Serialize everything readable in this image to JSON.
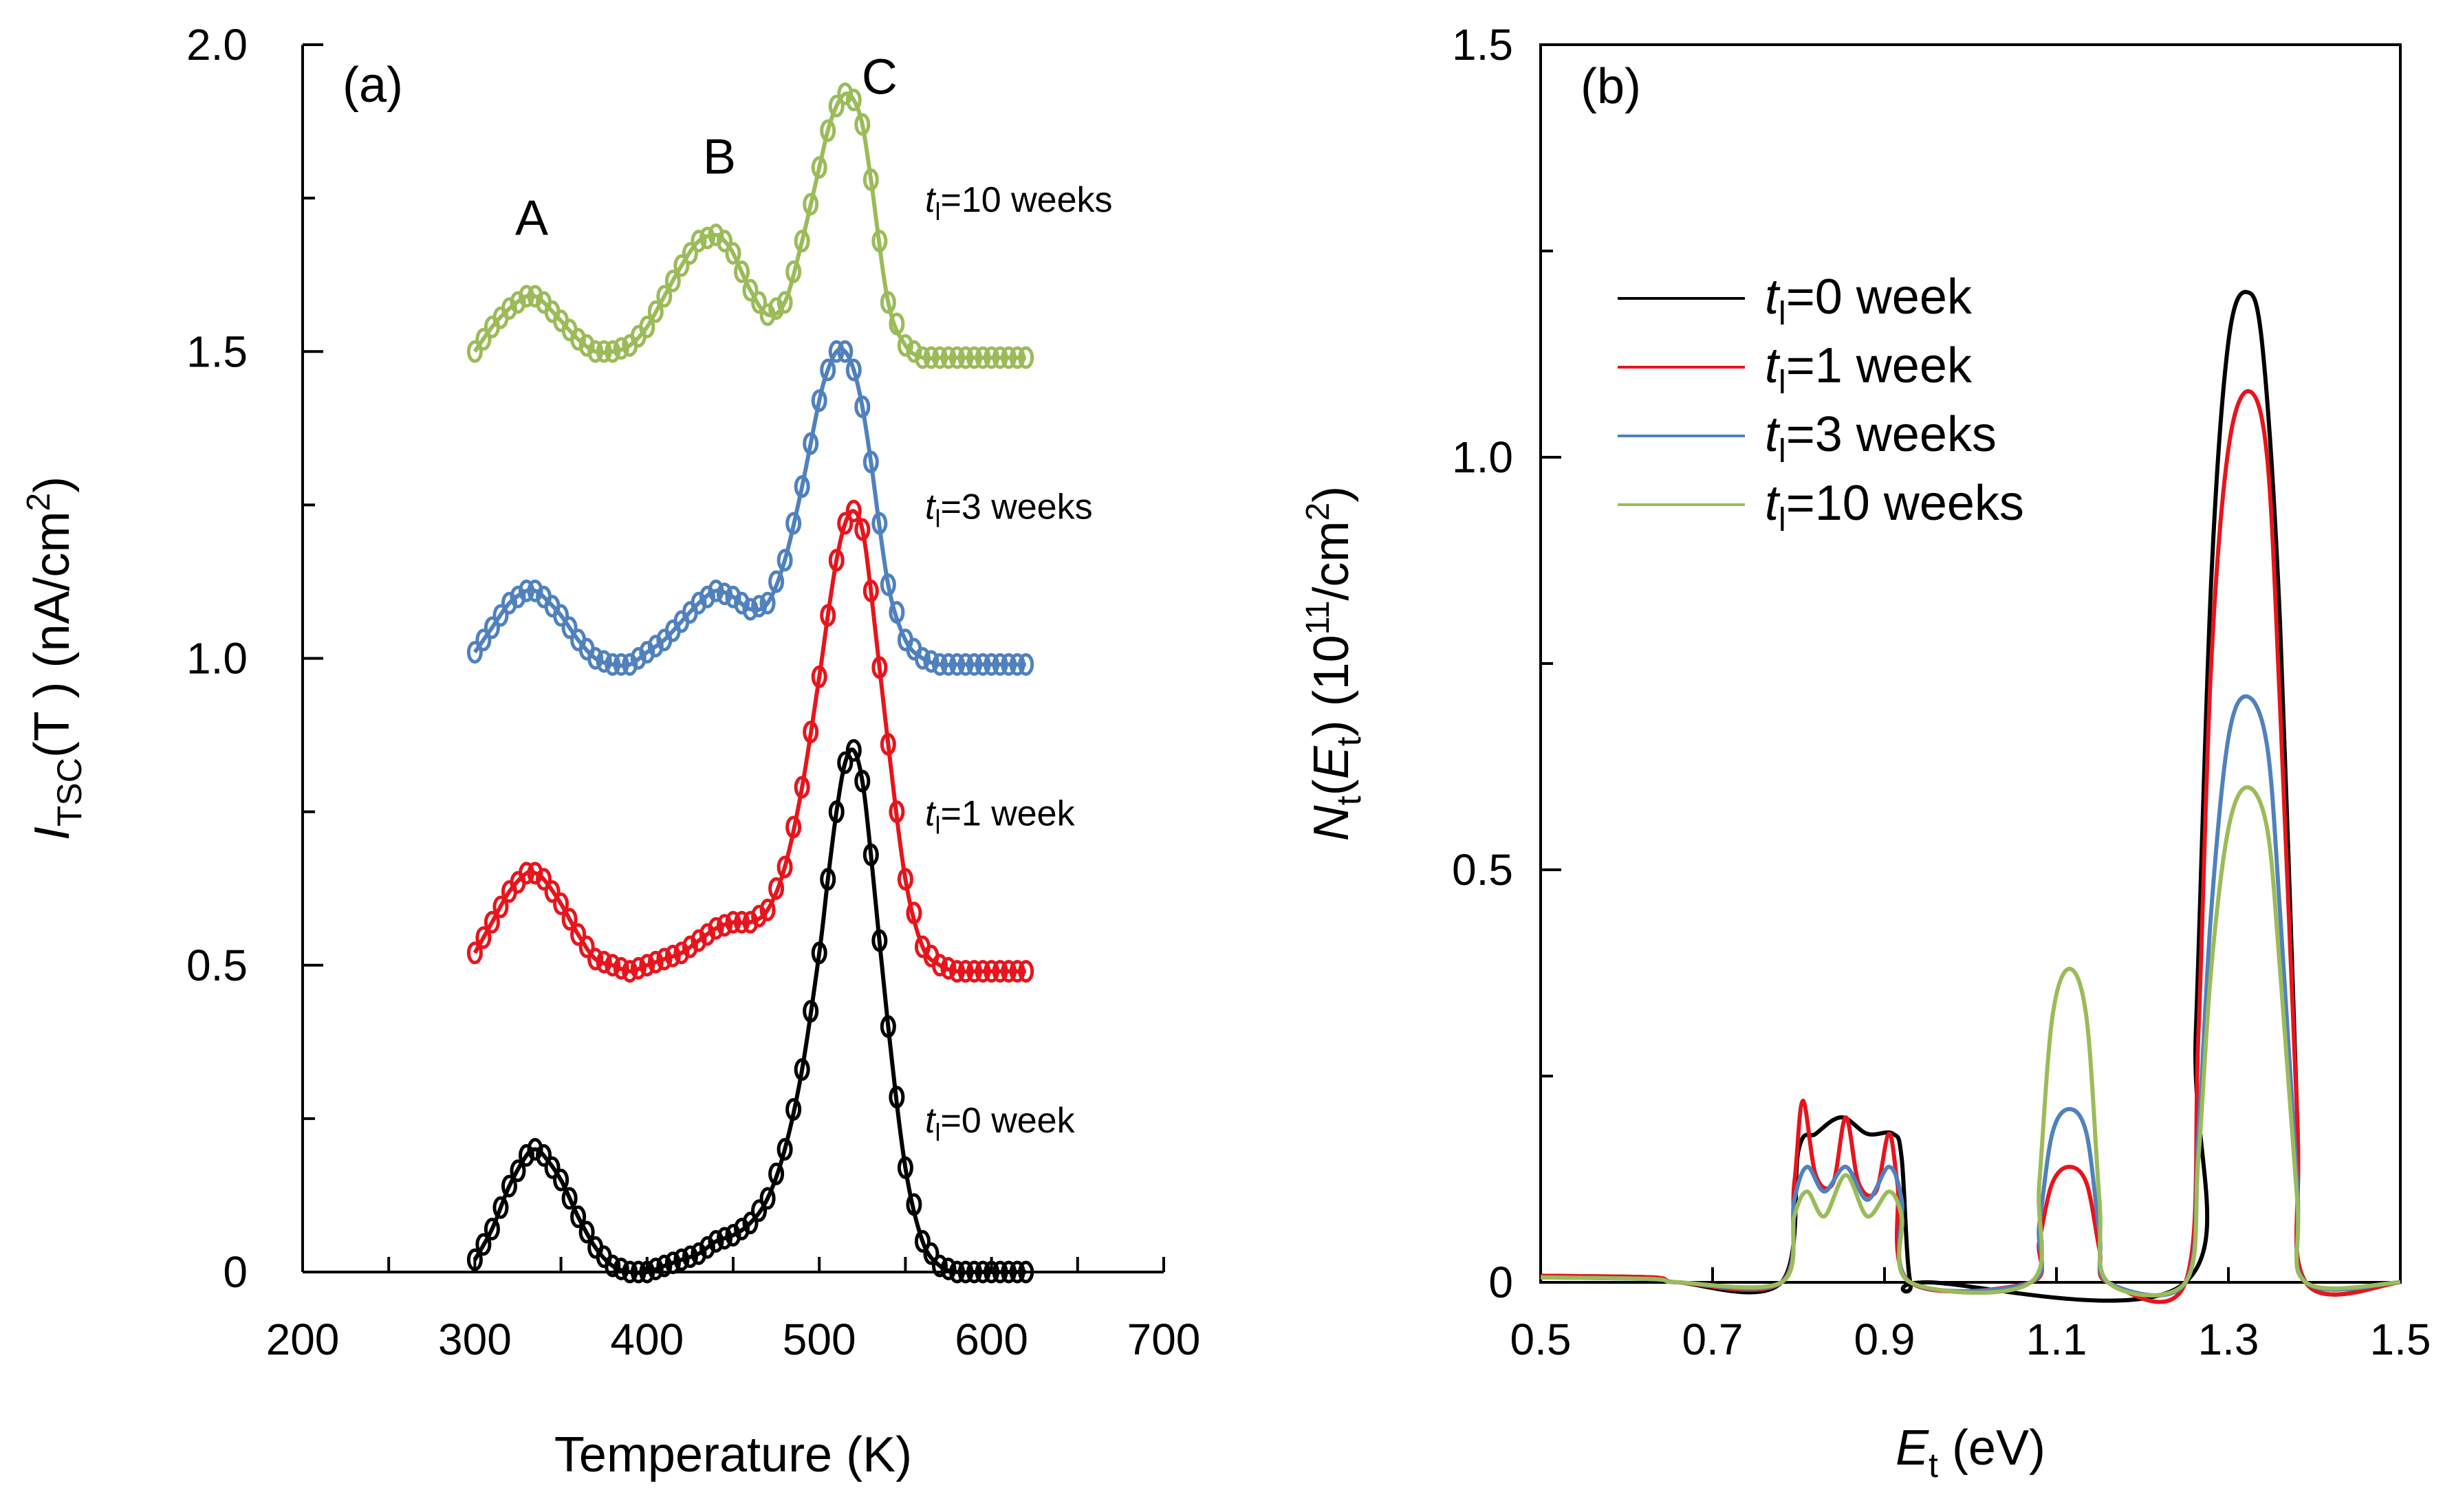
{
  "chart_data": [
    {
      "type": "scatter",
      "panel_label": "(a)",
      "xlabel": "Temperature (K)",
      "ylabel": {
        "main": "I",
        "sub": "TSC",
        "rest": "(T ) (nA/cm",
        "sup": "2",
        "close": ")"
      },
      "xlim": [
        200,
        700
      ],
      "ylim": [
        0,
        2.0
      ],
      "xticks": [
        200,
        300,
        400,
        500,
        600,
        700
      ],
      "xtick_labels": [
        "200",
        "300",
        "400",
        "500",
        "600",
        "700"
      ],
      "yticks": [
        0,
        0.5,
        1.0,
        1.5,
        2.0
      ],
      "ytick_labels": [
        "0",
        "0.5",
        "1.0",
        "1.5",
        "2.0"
      ],
      "peak_labels": [
        {
          "text": "A",
          "x": 333,
          "y": 1.69
        },
        {
          "text": "B",
          "x": 442,
          "y": 1.79
        },
        {
          "text": "C",
          "x": 535,
          "y": 1.92
        }
      ],
      "markers": "open circles (measured), solid line (fit)",
      "series": [
        {
          "name": "tl=0 week",
          "label": {
            "t": "t",
            "sub": "l",
            "rest": "=0 week"
          },
          "color": "#000000",
          "offset": 0.0,
          "x": [
            300,
            310,
            320,
            330,
            335,
            340,
            350,
            360,
            370,
            380,
            390,
            400,
            410,
            420,
            430,
            440,
            450,
            460,
            470,
            480,
            490,
            500,
            505,
            510,
            515,
            520,
            525,
            530,
            540,
            550,
            560,
            570,
            580,
            590,
            600,
            610,
            620
          ],
          "y": [
            0.02,
            0.07,
            0.14,
            0.19,
            0.2,
            0.19,
            0.15,
            0.09,
            0.04,
            0.01,
            0.0,
            0.0,
            0.01,
            0.02,
            0.03,
            0.05,
            0.06,
            0.08,
            0.12,
            0.2,
            0.33,
            0.52,
            0.64,
            0.75,
            0.83,
            0.85,
            0.8,
            0.68,
            0.4,
            0.17,
            0.05,
            0.01,
            0.0,
            0.0,
            0.0,
            0.0,
            0.0
          ]
        },
        {
          "name": "tl=1 week",
          "label": {
            "t": "t",
            "sub": "l",
            "rest": "=1 week"
          },
          "color": "#e8141c",
          "offset": 0.5,
          "x": [
            300,
            310,
            320,
            330,
            335,
            340,
            350,
            360,
            370,
            380,
            390,
            400,
            410,
            420,
            430,
            440,
            450,
            460,
            470,
            480,
            490,
            500,
            505,
            510,
            515,
            520,
            525,
            530,
            540,
            550,
            560,
            570,
            580,
            590,
            600,
            610,
            620
          ],
          "y": [
            0.52,
            0.57,
            0.62,
            0.65,
            0.65,
            0.64,
            0.6,
            0.55,
            0.51,
            0.5,
            0.49,
            0.5,
            0.51,
            0.52,
            0.54,
            0.56,
            0.57,
            0.57,
            0.59,
            0.66,
            0.79,
            0.97,
            1.07,
            1.16,
            1.22,
            1.24,
            1.21,
            1.11,
            0.86,
            0.64,
            0.53,
            0.5,
            0.49,
            0.49,
            0.49,
            0.49,
            0.49
          ]
        },
        {
          "name": "tl=3 weeks",
          "label": {
            "t": "t",
            "sub": "l",
            "rest": "=3 weeks"
          },
          "color": "#4f81bd",
          "offset": 1.0,
          "x": [
            300,
            310,
            320,
            330,
            335,
            340,
            350,
            360,
            370,
            380,
            390,
            400,
            410,
            420,
            430,
            440,
            450,
            460,
            470,
            480,
            490,
            500,
            505,
            510,
            515,
            520,
            525,
            530,
            540,
            550,
            560,
            570,
            580,
            590,
            600,
            610,
            620
          ],
          "y": [
            1.01,
            1.05,
            1.09,
            1.11,
            1.11,
            1.1,
            1.07,
            1.03,
            1.0,
            0.99,
            0.99,
            1.01,
            1.03,
            1.06,
            1.09,
            1.11,
            1.1,
            1.08,
            1.09,
            1.16,
            1.28,
            1.42,
            1.47,
            1.5,
            1.5,
            1.47,
            1.41,
            1.32,
            1.12,
            1.03,
            1.0,
            0.99,
            0.99,
            0.99,
            0.99,
            0.99,
            0.99
          ]
        },
        {
          "name": "tl=10 weeks",
          "label": {
            "t": "t",
            "sub": "l",
            "rest": "=10 weeks"
          },
          "color": "#9bbb59",
          "offset": 1.5,
          "x": [
            300,
            310,
            320,
            330,
            335,
            340,
            350,
            360,
            370,
            380,
            390,
            400,
            410,
            420,
            430,
            440,
            445,
            450,
            460,
            470,
            480,
            490,
            500,
            505,
            510,
            515,
            520,
            525,
            530,
            540,
            550,
            560,
            570,
            580,
            590,
            600,
            610,
            620
          ],
          "y": [
            1.5,
            1.54,
            1.57,
            1.59,
            1.59,
            1.58,
            1.55,
            1.52,
            1.5,
            1.5,
            1.51,
            1.54,
            1.59,
            1.64,
            1.68,
            1.69,
            1.68,
            1.66,
            1.6,
            1.56,
            1.58,
            1.68,
            1.8,
            1.86,
            1.9,
            1.92,
            1.91,
            1.87,
            1.78,
            1.58,
            1.51,
            1.49,
            1.49,
            1.49,
            1.49,
            1.49,
            1.49,
            1.49
          ]
        }
      ]
    },
    {
      "type": "line",
      "panel_label": "(b)",
      "xlabel": {
        "main": "E",
        "sub": "t",
        "rest": " (eV)"
      },
      "ylabel": {
        "main": "N",
        "sub": "t",
        "open": "(",
        "inner": "E",
        "inner_sub": "t",
        "rest": ") (10",
        "sup": "11",
        "rest2": "/cm",
        "sup2": "2",
        "close": ")"
      },
      "xlim": [
        0.5,
        1.5
      ],
      "ylim": [
        0,
        1.5
      ],
      "xticks": [
        0.5,
        0.7,
        0.9,
        1.1,
        1.3,
        1.5
      ],
      "xtick_labels": [
        "0.5",
        "0.7",
        "0.9",
        "1.1",
        "1.3",
        "1.5"
      ],
      "yticks": [
        0,
        0.5,
        1.0,
        1.5
      ],
      "ytick_labels": [
        "0",
        "0.5",
        "1.0",
        "1.5"
      ],
      "legend_position": "upper-left",
      "series": [
        {
          "name": "tl=0 week",
          "label": {
            "t": "t",
            "sub": "l",
            "rest": "=0 week"
          },
          "color": "#000000",
          "x": [
            0.5,
            0.63,
            0.66,
            0.78,
            0.8,
            0.82,
            0.85,
            0.88,
            0.91,
            0.92,
            0.93,
            0.95,
            1.25,
            1.262,
            1.28,
            1.3,
            1.322,
            1.34,
            1.36,
            1.38,
            1.39,
            1.5
          ],
          "y": [
            0.008,
            0.006,
            0.0,
            0.0,
            0.16,
            0.18,
            0.2,
            0.18,
            0.18,
            0.15,
            0.0,
            0.0,
            0.0,
            0.3,
            0.85,
            1.14,
            1.2,
            1.13,
            0.8,
            0.2,
            0.0,
            0.0
          ]
        },
        {
          "name": "tl=1 week",
          "label": {
            "t": "t",
            "sub": "l",
            "rest": "=1 week"
          },
          "color": "#e8141c",
          "x": [
            0.5,
            0.63,
            0.66,
            0.78,
            0.795,
            0.805,
            0.82,
            0.84,
            0.855,
            0.87,
            0.89,
            0.905,
            0.915,
            0.93,
            1.07,
            1.08,
            1.095,
            1.115,
            1.135,
            1.15,
            1.16,
            1.25,
            1.265,
            1.28,
            1.3,
            1.324,
            1.345,
            1.36,
            1.38,
            1.39,
            1.5
          ],
          "y": [
            0.008,
            0.006,
            0.0,
            0.0,
            0.12,
            0.22,
            0.13,
            0.12,
            0.2,
            0.12,
            0.11,
            0.18,
            0.12,
            0.0,
            0.0,
            0.05,
            0.12,
            0.14,
            0.12,
            0.04,
            0.0,
            0.0,
            0.3,
            0.75,
            1.01,
            1.08,
            1.0,
            0.7,
            0.2,
            0.0,
            0.0
          ]
        },
        {
          "name": "tl=3 weeks",
          "label": {
            "t": "t",
            "sub": "l",
            "rest": "=3 weeks"
          },
          "color": "#4f81bd",
          "x": [
            0.5,
            0.63,
            0.66,
            0.78,
            0.795,
            0.81,
            0.83,
            0.855,
            0.88,
            0.905,
            0.92,
            0.93,
            1.07,
            1.08,
            1.095,
            1.115,
            1.135,
            1.15,
            1.16,
            1.25,
            1.265,
            1.28,
            1.3,
            1.322,
            1.345,
            1.36,
            1.38,
            1.39,
            1.5
          ],
          "y": [
            0.006,
            0.004,
            0.0,
            0.0,
            0.1,
            0.14,
            0.11,
            0.14,
            0.1,
            0.14,
            0.1,
            0.0,
            0.0,
            0.07,
            0.18,
            0.21,
            0.18,
            0.06,
            0.0,
            0.0,
            0.18,
            0.45,
            0.66,
            0.71,
            0.65,
            0.45,
            0.12,
            0.0,
            0.0
          ]
        },
        {
          "name": "tl=10 weeks",
          "label": {
            "t": "t",
            "sub": "l",
            "rest": "=10 weeks"
          },
          "color": "#9bbb59",
          "x": [
            0.5,
            0.63,
            0.66,
            0.78,
            0.795,
            0.81,
            0.83,
            0.855,
            0.88,
            0.905,
            0.92,
            0.93,
            1.07,
            1.08,
            1.095,
            1.115,
            1.135,
            1.15,
            1.16,
            1.25,
            1.265,
            1.28,
            1.3,
            1.322,
            1.345,
            1.36,
            1.38,
            1.39,
            1.5
          ],
          "y": [
            0.006,
            0.004,
            0.0,
            0.0,
            0.08,
            0.11,
            0.08,
            0.13,
            0.08,
            0.11,
            0.08,
            0.0,
            0.0,
            0.12,
            0.32,
            0.38,
            0.32,
            0.1,
            0.0,
            0.0,
            0.15,
            0.38,
            0.55,
            0.6,
            0.55,
            0.38,
            0.1,
            0.0,
            0.0
          ]
        }
      ]
    }
  ]
}
